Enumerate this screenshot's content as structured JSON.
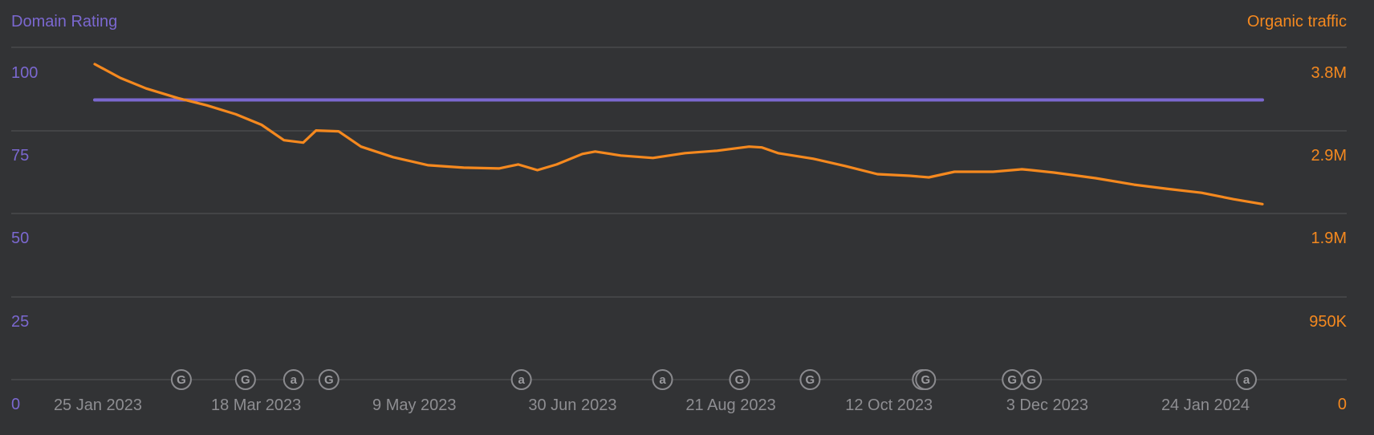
{
  "chart_data": {
    "type": "line",
    "left_title": "Domain Rating",
    "right_title": "Organic traffic",
    "left_axis": {
      "min": 0,
      "max": 100,
      "ticks": [
        "0",
        "25",
        "50",
        "75",
        "100"
      ]
    },
    "right_axis": {
      "min": 0,
      "max": 3800000,
      "ticks": [
        "0",
        "950K",
        "1.9M",
        "2.9M",
        "3.8M"
      ]
    },
    "x_labels": [
      "25 Jan 2023",
      "18 Mar 2023",
      "9 May 2023",
      "30 Jun 2023",
      "21 Aug 2023",
      "12 Oct 2023",
      "3 Dec 2023",
      "24 Jan 2024"
    ],
    "x_range": [
      "2023-01-25",
      "2024-01-24"
    ],
    "grid": true,
    "series": [
      {
        "name": "Domain Rating",
        "axis": "left",
        "color": "#7b68d0",
        "points": [
          [
            "2023-01-25",
            91
          ],
          [
            "2024-01-24",
            91
          ]
        ]
      },
      {
        "name": "Organic traffic",
        "axis": "right",
        "color": "#f5891f",
        "points": [
          [
            "2023-01-25",
            3900000
          ],
          [
            "2023-02-02",
            3730000
          ],
          [
            "2023-02-10",
            3600000
          ],
          [
            "2023-02-20",
            3480000
          ],
          [
            "2023-03-01",
            3390000
          ],
          [
            "2023-03-10",
            3280000
          ],
          [
            "2023-03-18",
            3150000
          ],
          [
            "2023-03-25",
            2960000
          ],
          [
            "2023-03-31",
            2930000
          ],
          [
            "2023-04-04",
            3080000
          ],
          [
            "2023-04-11",
            3070000
          ],
          [
            "2023-04-18",
            2880000
          ],
          [
            "2023-04-28",
            2750000
          ],
          [
            "2023-05-09",
            2650000
          ],
          [
            "2023-05-20",
            2620000
          ],
          [
            "2023-05-31",
            2610000
          ],
          [
            "2023-06-06",
            2660000
          ],
          [
            "2023-06-12",
            2590000
          ],
          [
            "2023-06-18",
            2660000
          ],
          [
            "2023-06-26",
            2790000
          ],
          [
            "2023-06-30",
            2820000
          ],
          [
            "2023-07-08",
            2770000
          ],
          [
            "2023-07-18",
            2740000
          ],
          [
            "2023-07-28",
            2800000
          ],
          [
            "2023-08-07",
            2830000
          ],
          [
            "2023-08-17",
            2880000
          ],
          [
            "2023-08-21",
            2870000
          ],
          [
            "2023-08-26",
            2800000
          ],
          [
            "2023-09-06",
            2730000
          ],
          [
            "2023-09-16",
            2640000
          ],
          [
            "2023-09-26",
            2540000
          ],
          [
            "2023-10-06",
            2520000
          ],
          [
            "2023-10-12",
            2500000
          ],
          [
            "2023-10-20",
            2570000
          ],
          [
            "2023-11-01",
            2570000
          ],
          [
            "2023-11-10",
            2600000
          ],
          [
            "2023-11-13",
            2590000
          ],
          [
            "2023-11-20",
            2560000
          ],
          [
            "2023-12-03",
            2490000
          ],
          [
            "2023-12-15",
            2410000
          ],
          [
            "2023-12-25",
            2360000
          ],
          [
            "2024-01-05",
            2310000
          ],
          [
            "2024-01-15",
            2230000
          ],
          [
            "2024-01-24",
            2170000
          ]
        ]
      }
    ],
    "annotations": [
      {
        "date": "2023-02-21",
        "label": "G"
      },
      {
        "date": "2023-03-13",
        "label": "G"
      },
      {
        "date": "2023-03-28",
        "label": "a"
      },
      {
        "date": "2023-04-08",
        "label": "G"
      },
      {
        "date": "2023-06-07",
        "label": "a"
      },
      {
        "date": "2023-07-21",
        "label": "a"
      },
      {
        "date": "2023-08-14",
        "label": "G"
      },
      {
        "date": "2023-09-05",
        "label": "G"
      },
      {
        "date": "2023-10-10",
        "label": "G"
      },
      {
        "date": "2023-10-11",
        "label": "G"
      },
      {
        "date": "2023-11-07",
        "label": "G"
      },
      {
        "date": "2023-11-13",
        "label": "G"
      },
      {
        "date": "2024-01-19",
        "label": "a"
      }
    ],
    "colors": {
      "left": "#7b68d0",
      "right": "#f5891f",
      "grid": "#4e4f52",
      "x_text": "#8e8e92",
      "marker": "#8a8a8e"
    }
  }
}
